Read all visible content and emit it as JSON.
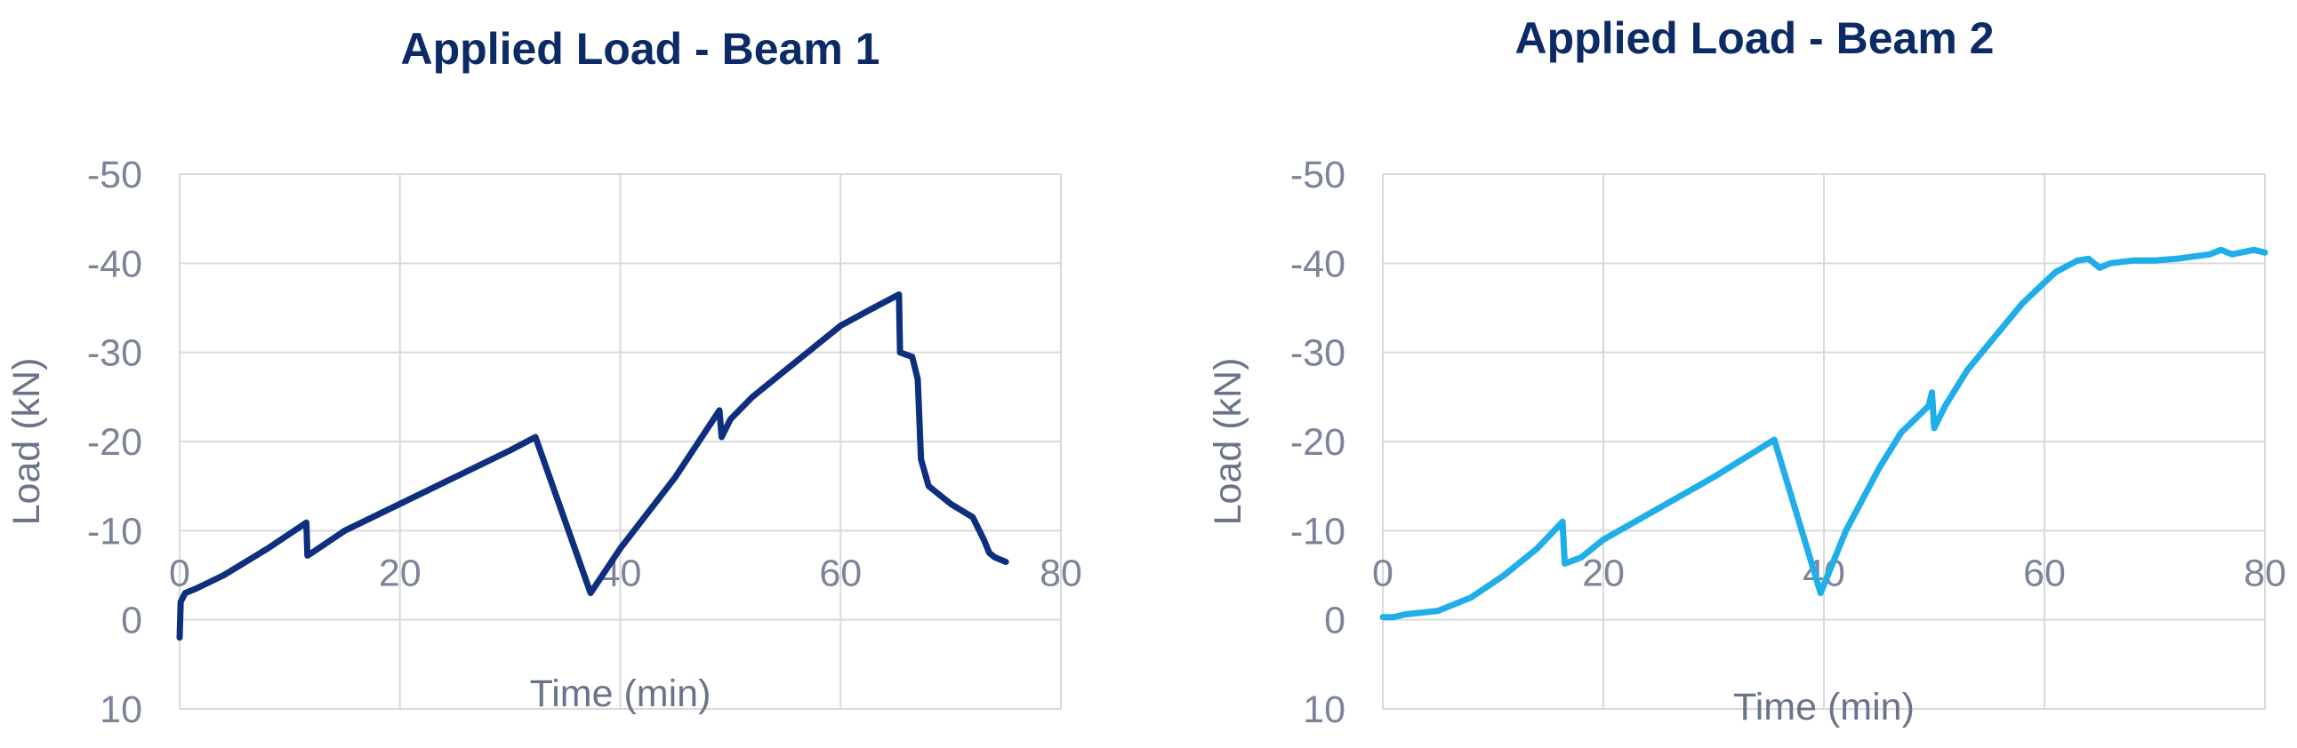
{
  "colors": {
    "title": "#0b2a66",
    "tick_text": "#7c8499",
    "axis_label": "#6a7388",
    "grid": "#d9d9d9"
  },
  "chart_data": [
    {
      "type": "line",
      "title": "Applied Load - Beam 1",
      "xlabel": "Time (min)",
      "ylabel": "Load (kN)",
      "xlim": [
        0,
        80
      ],
      "ylim": [
        10,
        -50
      ],
      "y_axis_reversed": true,
      "x_ticks": [
        "0",
        "20",
        "40",
        "60",
        "80"
      ],
      "y_ticks": [
        "-50",
        "-40",
        "-30",
        "-20",
        "-10",
        "0",
        "10"
      ],
      "grid": true,
      "legend": "none",
      "series": [
        {
          "color": "#0d2f7d",
          "x": [
            0,
            0.1,
            0.5,
            1.5,
            4,
            8,
            11.5,
            11.6,
            12,
            15,
            20,
            25,
            30,
            32.3,
            37.3,
            40,
            45,
            49,
            49.2,
            50,
            52,
            55,
            60,
            63,
            65.3,
            65.4,
            66.5,
            67,
            67.3,
            68,
            70,
            72,
            73,
            73.5,
            74,
            75
          ],
          "y": [
            2,
            -2,
            -3,
            -3.5,
            -5,
            -8,
            -10.9,
            -7.2,
            -7.5,
            -10,
            -13,
            -16,
            -19,
            -20.5,
            -3,
            -8,
            -16,
            -23.5,
            -20.5,
            -22.5,
            -25,
            -28,
            -33,
            -35,
            -36.5,
            -30,
            -29.5,
            -27,
            -18,
            -15,
            -13,
            -11.5,
            -9,
            -7.5,
            -7,
            -6.5
          ]
        }
      ]
    },
    {
      "type": "line",
      "title": "Applied Load - Beam 2",
      "xlabel": "Time (min)",
      "ylabel": "Load (kN)",
      "xlim": [
        0,
        80
      ],
      "ylim": [
        10,
        -50
      ],
      "y_axis_reversed": true,
      "x_ticks": [
        "0",
        "20",
        "40",
        "60",
        "80"
      ],
      "y_ticks": [
        "-50",
        "-40",
        "-30",
        "-20",
        "-10",
        "0",
        "10"
      ],
      "grid": true,
      "legend": "none",
      "series": [
        {
          "color": "#1faee8",
          "x": [
            0,
            1,
            2,
            5,
            8,
            11,
            14,
            16.3,
            16.5,
            18,
            20,
            25,
            30,
            35.5,
            39.7,
            42,
            45,
            47,
            49.5,
            49.8,
            50,
            51,
            53,
            55,
            58,
            61,
            63,
            64,
            65,
            66,
            68,
            70,
            72,
            75,
            76,
            77,
            79,
            80
          ],
          "y": [
            -0.3,
            -0.3,
            -0.6,
            -1,
            -2.5,
            -5,
            -8,
            -11,
            -6.3,
            -7,
            -9,
            -12.5,
            -16,
            -20.2,
            -3,
            -10,
            -17,
            -21,
            -24,
            -25.5,
            -21.5,
            -24,
            -28,
            -31,
            -35.5,
            -39,
            -40.3,
            -40.5,
            -39.5,
            -40,
            -40.3,
            -40.3,
            -40.5,
            -41,
            -41.5,
            -41,
            -41.5,
            -41.2
          ]
        }
      ]
    }
  ]
}
